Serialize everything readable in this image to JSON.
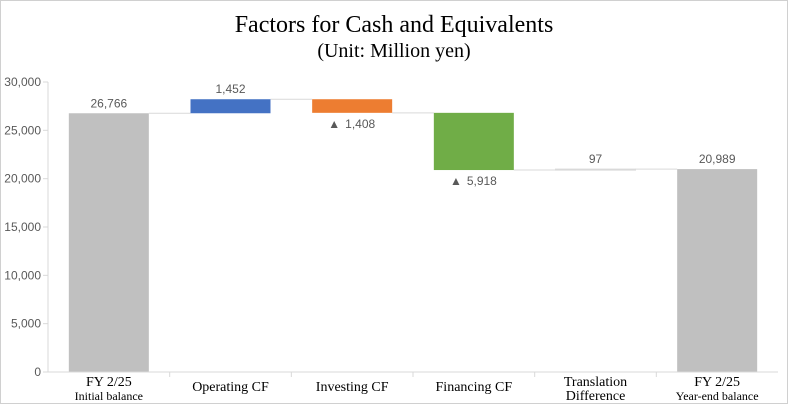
{
  "chart_data": {
    "type": "waterfall",
    "title": "Factors for Cash and Equivalents",
    "subtitle": "(Unit: Million yen)",
    "ylim": [
      0,
      30000
    ],
    "yticks": [
      0,
      5000,
      10000,
      15000,
      20000,
      25000,
      30000
    ],
    "ytick_labels": [
      "0",
      "5,000",
      "10,000",
      "15,000",
      "20,000",
      "25,000",
      "30,000"
    ],
    "grid": false,
    "bars": [
      {
        "category": "FY 2/25 Initial balance",
        "label_lines": [
          "FY 2/25",
          "Initial balance"
        ],
        "kind": "total",
        "value": 26766,
        "start": 0,
        "end": 26766,
        "display": "26,766",
        "color": "#c0c0c0"
      },
      {
        "category": "Operating CF",
        "label_lines": [
          "Operating CF"
        ],
        "kind": "increase",
        "value": 1452,
        "start": 26766,
        "end": 28218,
        "display": "1,452",
        "color": "#4472c4"
      },
      {
        "category": "Investing CF",
        "label_lines": [
          "Investing CF"
        ],
        "kind": "decrease",
        "value": -1408,
        "start": 28218,
        "end": 26810,
        "display": "1,408",
        "negative_marker": "▲",
        "color": "#ed7d31"
      },
      {
        "category": "Financing CF",
        "label_lines": [
          "Financing CF"
        ],
        "kind": "decrease",
        "value": -5918,
        "start": 26810,
        "end": 20892,
        "display": "5,918",
        "negative_marker": "▲",
        "color": "#70ad47"
      },
      {
        "category": "Translation Difference",
        "label_lines": [
          "Translation",
          "Difference"
        ],
        "kind": "increase",
        "value": 97,
        "start": 20892,
        "end": 20989,
        "display": "97",
        "color": "#ffffff",
        "stroke": "#d9d9d9"
      },
      {
        "category": "FY 2/25 Year-end balance",
        "label_lines": [
          "FY 2/25",
          "Year-end balance"
        ],
        "kind": "total",
        "value": 20989,
        "start": 0,
        "end": 20989,
        "display": "20,989",
        "color": "#c0c0c0"
      }
    ],
    "colors": {
      "axis": "#d9d9d9",
      "connector": "#d9d9d9",
      "tick_text": "#595959",
      "label_text": "#595959"
    }
  }
}
